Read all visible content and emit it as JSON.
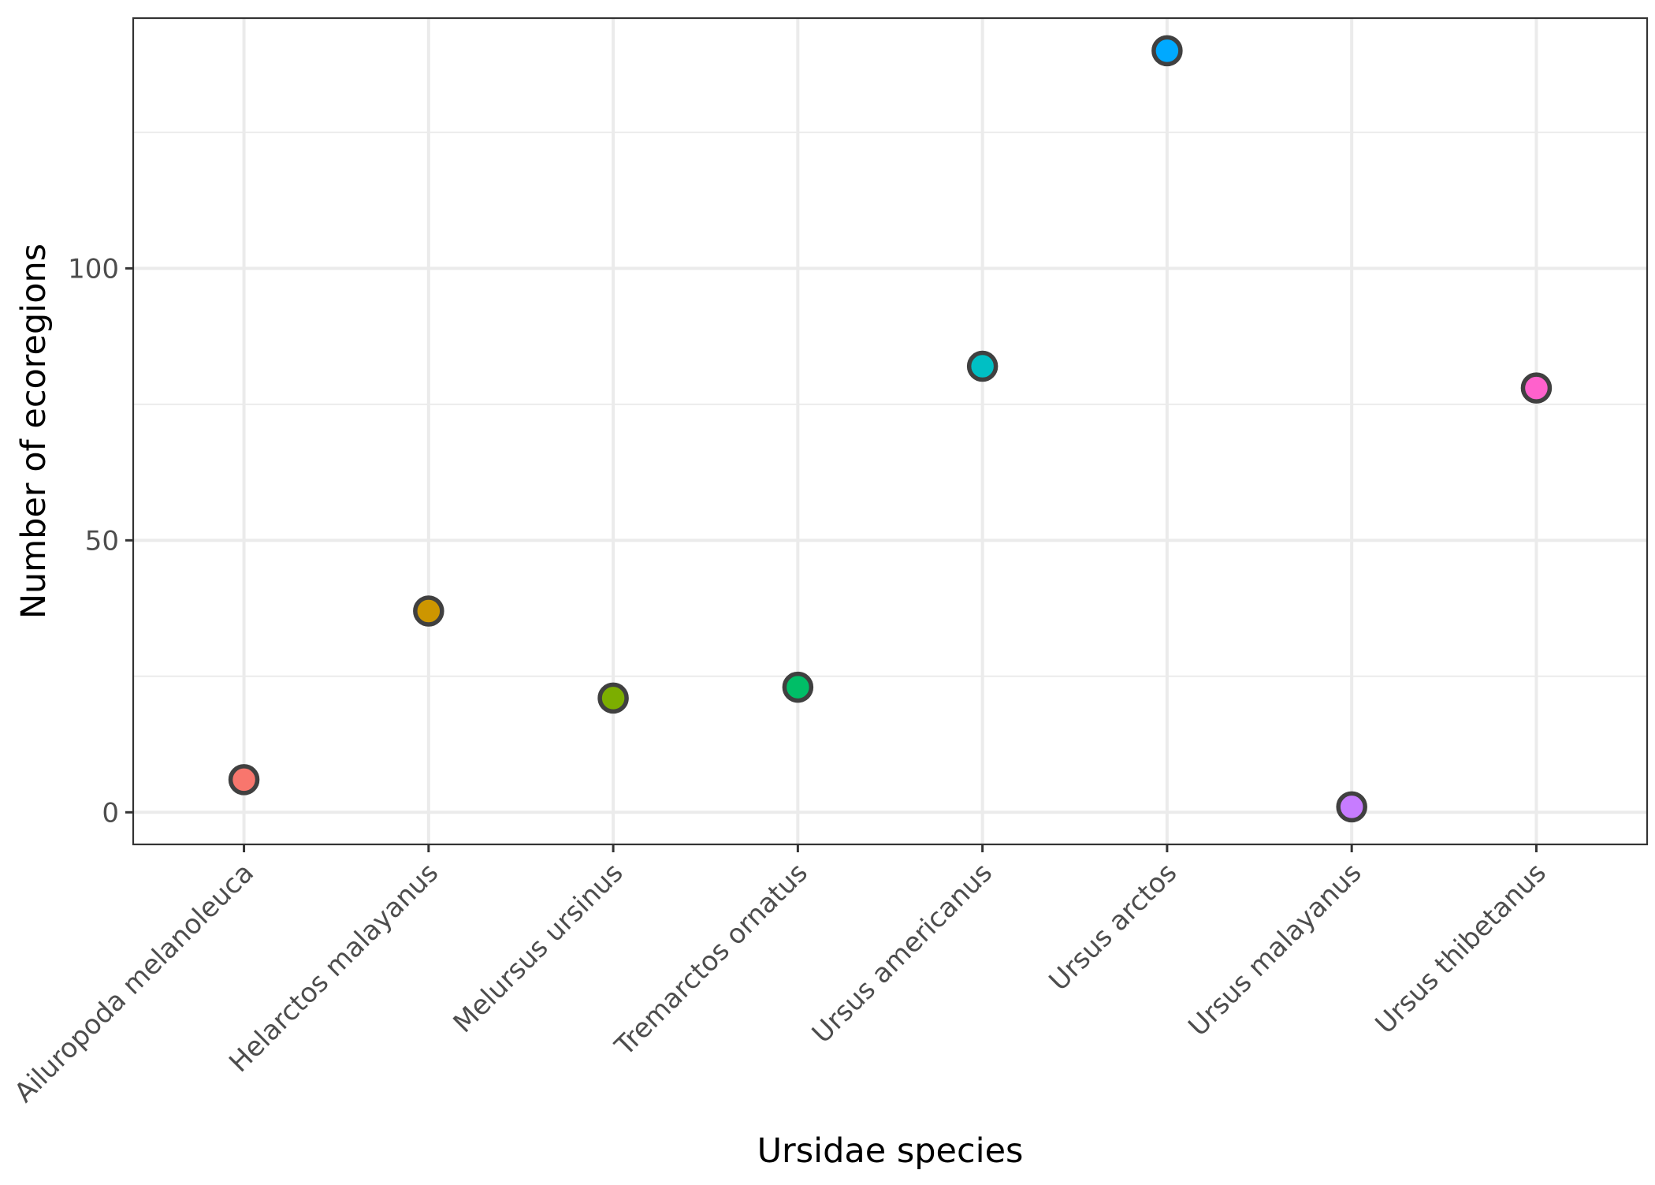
{
  "chart_data": {
    "type": "scatter",
    "xlabel": "Ursidae species",
    "ylabel": "Number of ecoregions",
    "categories": [
      "Ailuropoda melanoleuca",
      "Helarctos malayanus",
      "Melursus ursinus",
      "Tremarctos ornatus",
      "Ursus americanus",
      "Ursus arctos",
      "Ursus malayanus",
      "Ursus thibetanus"
    ],
    "values": [
      6,
      37,
      21,
      23,
      82,
      140,
      1,
      78
    ],
    "colors": [
      "#F8766D",
      "#CD9600",
      "#7CAE00",
      "#00BE67",
      "#00BFC4",
      "#00A9FF",
      "#C77CFF",
      "#FF61CC"
    ],
    "ylim": [
      -5.9,
      146.0
    ],
    "yticks": [
      0,
      50,
      100
    ],
    "ytick_labels": [
      "0",
      "50",
      "100"
    ],
    "y_minor_gridlines": [
      25,
      75,
      125
    ],
    "grid": true,
    "legend": "none",
    "theme": "white background with light grey grid and dark panel border"
  }
}
